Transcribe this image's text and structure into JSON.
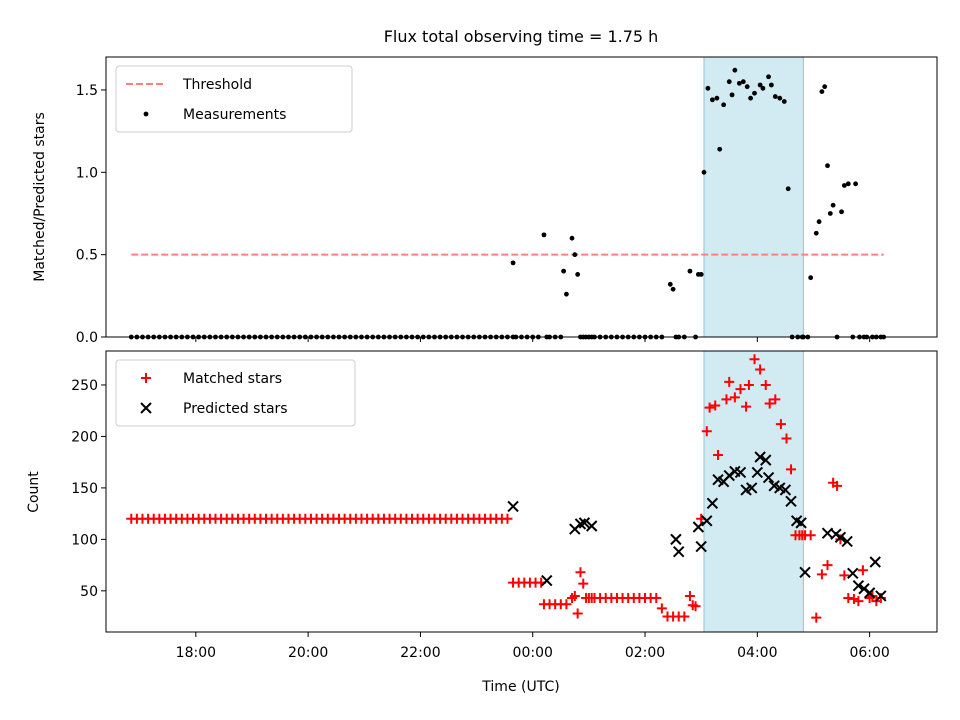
{
  "chart_data": [
    {
      "type": "scatter",
      "title": "Flux total observing time = 1.75 h",
      "xlabel": "",
      "ylabel": "Matched/Predicted stars",
      "xlim": [
        -7.6,
        7.2
      ],
      "ylim": [
        0,
        1.7
      ],
      "yticks": [
        0.0,
        0.5,
        1.0,
        1.5
      ],
      "ytick_labels": [
        "0.0",
        "0.5",
        "1.0",
        "1.5"
      ],
      "xticks": [
        -6,
        -4,
        -2,
        0,
        2,
        4,
        6
      ],
      "shaded_interval": [
        3.05,
        4.82
      ],
      "shaded_color": "#add8e6",
      "legend": {
        "position": "top-left",
        "entries": [
          "Threshold",
          "Measurements"
        ]
      },
      "series": [
        {
          "name": "Threshold",
          "kind": "dashed-line",
          "color": "#ff7f7f",
          "x": [
            -7.15,
            6.25
          ],
          "y": [
            0.5,
            0.5
          ]
        },
        {
          "name": "Measurements",
          "kind": "dots",
          "color": "#000000",
          "zero_run": {
            "x_start": -7.15,
            "x_end": -0.35,
            "step": 0.1,
            "y": 0
          },
          "x": [
            -0.35,
            -0.3,
            -0.2,
            -0.1,
            0.0,
            0.1,
            0.2,
            0.25,
            0.3,
            0.4,
            0.5,
            0.55,
            0.6,
            0.7,
            0.75,
            0.8,
            0.85,
            0.9,
            0.95,
            1.0,
            1.05,
            1.1,
            1.2,
            1.3,
            1.4,
            1.5,
            1.6,
            1.7,
            1.8,
            1.9,
            2.0,
            2.1,
            2.2,
            2.3,
            2.45,
            2.5,
            2.55,
            2.6,
            2.7,
            2.8,
            2.9,
            2.95,
            3.0,
            3.05,
            3.12,
            3.2,
            3.28,
            3.33,
            3.4,
            3.5,
            3.55,
            3.6,
            3.68,
            3.75,
            3.82,
            3.88,
            3.95,
            4.05,
            4.1,
            4.2,
            4.25,
            4.32,
            4.4,
            4.48,
            4.55,
            4.62,
            4.72,
            4.8,
            4.82,
            4.9,
            4.95,
            5.05,
            5.1,
            5.15,
            5.2,
            5.25,
            5.3,
            5.35,
            5.42,
            5.5,
            5.55,
            5.62,
            5.7,
            5.75,
            5.82,
            5.9,
            5.95,
            6.05,
            6.12,
            6.2,
            6.25
          ],
          "y": [
            0.45,
            0,
            0,
            0,
            0,
            0,
            0.62,
            0,
            0,
            0,
            0,
            0.4,
            0.26,
            0.6,
            0.5,
            0.38,
            0,
            0,
            0,
            0,
            0,
            0,
            0,
            0,
            0,
            0,
            0,
            0,
            0,
            0,
            0,
            0,
            0,
            0,
            0.32,
            0.29,
            0,
            0,
            0,
            0.4,
            0,
            0.38,
            0.38,
            1.0,
            1.51,
            1.44,
            1.45,
            1.14,
            1.41,
            1.55,
            1.47,
            1.62,
            1.54,
            1.55,
            1.52,
            1.45,
            1.48,
            1.53,
            1.51,
            1.58,
            1.53,
            1.46,
            1.45,
            1.43,
            0.9,
            0,
            0,
            0,
            0,
            0,
            0.36,
            0.63,
            0.7,
            1.49,
            1.52,
            1.04,
            0.75,
            0.8,
            0,
            0.76,
            0.92,
            0.93,
            0,
            0.93,
            0,
            0,
            0,
            0,
            0,
            0,
            0
          ]
        }
      ]
    },
    {
      "type": "scatter",
      "title": "",
      "xlabel": "Time (UTC)",
      "ylabel": "Count",
      "xlim": [
        -7.6,
        7.2
      ],
      "ylim": [
        10,
        283
      ],
      "yticks": [
        50,
        100,
        150,
        200,
        250
      ],
      "ytick_labels": [
        "50",
        "100",
        "150",
        "200",
        "250"
      ],
      "xticks": [
        -6,
        -4,
        -2,
        0,
        2,
        4,
        6
      ],
      "xtick_labels": [
        "18:00",
        "20:00",
        "22:00",
        "00:00",
        "02:00",
        "04:00",
        "06:00"
      ],
      "shaded_interval": [
        3.05,
        4.82
      ],
      "shaded_color": "#add8e6",
      "legend": {
        "position": "top-left",
        "entries": [
          "Matched stars",
          "Predicted stars"
        ]
      },
      "series": [
        {
          "name": "Matched stars",
          "marker": "+",
          "color": "#ff0000",
          "constant_run": {
            "x_start": -7.15,
            "x_end": -0.45,
            "step": 0.1,
            "y": 120
          },
          "x": [
            -0.35,
            -0.25,
            -0.15,
            -0.05,
            0.05,
            0.15,
            0.2,
            0.3,
            0.4,
            0.5,
            0.6,
            0.7,
            0.75,
            0.8,
            0.85,
            0.9,
            0.95,
            1.0,
            1.05,
            1.1,
            1.2,
            1.3,
            1.4,
            1.5,
            1.6,
            1.7,
            1.8,
            1.9,
            2.0,
            2.1,
            2.2,
            2.3,
            2.4,
            2.5,
            2.6,
            2.7,
            2.8,
            2.85,
            2.9,
            3.0,
            3.1,
            3.15,
            3.25,
            3.3,
            3.45,
            3.5,
            3.6,
            3.7,
            3.8,
            3.85,
            3.95,
            4.05,
            4.15,
            4.22,
            4.32,
            4.42,
            4.52,
            4.6,
            4.68,
            4.75,
            4.8,
            4.85,
            4.95,
            5.05,
            5.15,
            5.25,
            5.35,
            5.42,
            5.48,
            5.55,
            5.62,
            5.72,
            5.8,
            5.88,
            6.0,
            6.05,
            6.12,
            6.2
          ],
          "y": [
            58,
            58,
            58,
            58,
            58,
            58,
            37,
            37,
            37,
            37,
            37,
            43,
            45,
            28,
            68,
            57,
            43,
            43,
            43,
            43,
            43,
            43,
            43,
            43,
            43,
            43,
            43,
            43,
            43,
            43,
            43,
            33,
            25,
            25,
            25,
            25,
            45,
            36,
            35,
            120,
            205,
            228,
            230,
            182,
            236,
            253,
            238,
            246,
            229,
            250,
            275,
            265,
            250,
            232,
            236,
            212,
            198,
            168,
            104,
            104,
            104,
            104,
            104,
            24,
            66,
            75,
            155,
            152,
            100,
            65,
            43,
            42,
            40,
            70,
            43,
            45,
            40,
            43
          ]
        },
        {
          "name": "Predicted stars",
          "marker": "x",
          "color": "#000000",
          "x": [
            -0.35,
            0.25,
            0.75,
            0.85,
            0.92,
            1.05,
            2.55,
            2.6,
            2.95,
            3.0,
            3.1,
            3.2,
            3.3,
            3.4,
            3.5,
            3.6,
            3.7,
            3.8,
            3.9,
            4.0,
            4.05,
            4.15,
            4.2,
            4.3,
            4.4,
            4.5,
            4.6,
            4.7,
            4.78,
            4.85,
            5.25,
            5.4,
            5.48,
            5.6,
            5.7,
            5.8,
            5.9,
            6.0,
            6.1,
            6.2
          ],
          "y": [
            132,
            60,
            110,
            115,
            116,
            113,
            100,
            88,
            112,
            93,
            118,
            135,
            158,
            156,
            162,
            166,
            165,
            148,
            150,
            165,
            180,
            177,
            160,
            152,
            150,
            148,
            137,
            118,
            116,
            68,
            106,
            105,
            102,
            98,
            67,
            55,
            52,
            48,
            78,
            45
          ]
        }
      ]
    }
  ]
}
